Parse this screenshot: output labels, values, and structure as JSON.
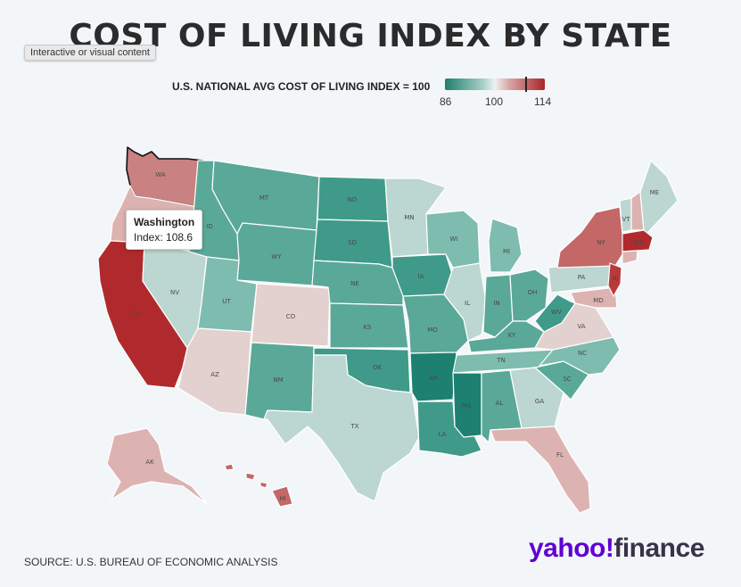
{
  "title": "COST OF LIVING INDEX BY STATE",
  "badge": "Interactive or visual content",
  "legend": {
    "label": "U.S. NATIONAL AVG COST OF LIVING INDEX = 100",
    "min": "86",
    "mid": "100",
    "max": "114"
  },
  "tooltip": {
    "state": "Washington",
    "value": "Index: 108.6"
  },
  "source": "SOURCE: U.S. BUREAU OF ECONOMIC ANALYSIS",
  "brand": {
    "part1": "yahoo!",
    "part2": "finance"
  },
  "colors": {
    "d3": "#1d8070",
    "d2": "#3f9a89",
    "d1": "#5aa898",
    "t2": "#7dbcae",
    "t1": "#a4cfc6",
    "t0": "#bcd6d1",
    "n": "#e3d1cf",
    "p1": "#ddb3b1",
    "p2": "#c98281",
    "p3": "#c36767",
    "p4": "#ba3a3a",
    "p5": "#b02a2d"
  },
  "states": [
    {
      "abbr": "WA",
      "label": "WA"
    },
    {
      "abbr": "OR",
      "label": ""
    },
    {
      "abbr": "CA",
      "label": "CA"
    },
    {
      "abbr": "NV",
      "label": "NV"
    },
    {
      "abbr": "ID",
      "label": "ID"
    },
    {
      "abbr": "MT",
      "label": "MT"
    },
    {
      "abbr": "WY",
      "label": "WY"
    },
    {
      "abbr": "UT",
      "label": "UT"
    },
    {
      "abbr": "AZ",
      "label": "AZ"
    },
    {
      "abbr": "CO",
      "label": "CO"
    },
    {
      "abbr": "NM",
      "label": "NM"
    },
    {
      "abbr": "ND",
      "label": "ND"
    },
    {
      "abbr": "SD",
      "label": "SD"
    },
    {
      "abbr": "NE",
      "label": "NE"
    },
    {
      "abbr": "KS",
      "label": "KS"
    },
    {
      "abbr": "OK",
      "label": "OK"
    },
    {
      "abbr": "TX",
      "label": "TX"
    },
    {
      "abbr": "MN",
      "label": "MN"
    },
    {
      "abbr": "IA",
      "label": "IA"
    },
    {
      "abbr": "MO",
      "label": "MO"
    },
    {
      "abbr": "AR",
      "label": "AR"
    },
    {
      "abbr": "LA",
      "label": "LA"
    },
    {
      "abbr": "WI",
      "label": "WI"
    },
    {
      "abbr": "IL",
      "label": "IL"
    },
    {
      "abbr": "MI",
      "label": "MI"
    },
    {
      "abbr": "IN",
      "label": "IN"
    },
    {
      "abbr": "OH",
      "label": "OH"
    },
    {
      "abbr": "KY",
      "label": "KY"
    },
    {
      "abbr": "TN",
      "label": "TN"
    },
    {
      "abbr": "MS",
      "label": "MS"
    },
    {
      "abbr": "AL",
      "label": "AL"
    },
    {
      "abbr": "GA",
      "label": "GA"
    },
    {
      "abbr": "FL",
      "label": "FL"
    },
    {
      "abbr": "SC",
      "label": "SC"
    },
    {
      "abbr": "NC",
      "label": "NC"
    },
    {
      "abbr": "VA",
      "label": "VA"
    },
    {
      "abbr": "WV",
      "label": "WV"
    },
    {
      "abbr": "PA",
      "label": "PA"
    },
    {
      "abbr": "NY",
      "label": "NY"
    },
    {
      "abbr": "MD",
      "label": "MD"
    },
    {
      "abbr": "NJ",
      "label": "NJ"
    },
    {
      "abbr": "VT",
      "label": "VT"
    },
    {
      "abbr": "NH",
      "label": ""
    },
    {
      "abbr": "ME",
      "label": "ME"
    },
    {
      "abbr": "MA",
      "label": "MA"
    },
    {
      "abbr": "AK",
      "label": "AK"
    },
    {
      "abbr": "HI",
      "label": "HI"
    }
  ]
}
